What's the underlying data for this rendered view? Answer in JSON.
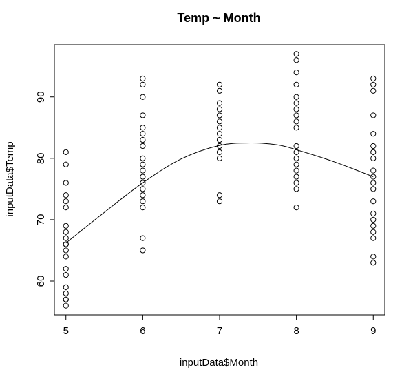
{
  "chart_data": {
    "type": "scatter",
    "title": "Temp ~ Month",
    "xlabel": "inputData$Month",
    "ylabel": "inputData$Temp",
    "xlim": [
      4.85,
      9.15
    ],
    "ylim": [
      54.5,
      98.5
    ],
    "x_ticks": [
      5,
      6,
      7,
      8,
      9
    ],
    "y_ticks": [
      60,
      70,
      80,
      90
    ],
    "grid": false,
    "legend": "none",
    "marker_color": "#000000",
    "line_color": "#000000",
    "series": [
      {
        "marker": "open-circle",
        "points": [
          [
            5,
            81
          ],
          [
            5,
            79
          ],
          [
            5,
            76
          ],
          [
            5,
            74
          ],
          [
            5,
            73
          ],
          [
            5,
            72
          ],
          [
            5,
            69
          ],
          [
            5,
            68
          ],
          [
            5,
            67
          ],
          [
            5,
            66
          ],
          [
            5,
            66
          ],
          [
            5,
            65
          ],
          [
            5,
            64
          ],
          [
            5,
            62
          ],
          [
            5,
            61
          ],
          [
            5,
            59
          ],
          [
            5,
            58
          ],
          [
            5,
            57
          ],
          [
            5,
            57
          ],
          [
            5,
            56
          ],
          [
            6,
            93
          ],
          [
            6,
            92
          ],
          [
            6,
            90
          ],
          [
            6,
            87
          ],
          [
            6,
            85
          ],
          [
            6,
            84
          ],
          [
            6,
            83
          ],
          [
            6,
            82
          ],
          [
            6,
            80
          ],
          [
            6,
            79
          ],
          [
            6,
            78
          ],
          [
            6,
            77
          ],
          [
            6,
            76
          ],
          [
            6,
            75
          ],
          [
            6,
            74
          ],
          [
            6,
            73
          ],
          [
            6,
            72
          ],
          [
            6,
            67
          ],
          [
            6,
            65
          ],
          [
            7,
            92
          ],
          [
            7,
            91
          ],
          [
            7,
            89
          ],
          [
            7,
            88
          ],
          [
            7,
            87
          ],
          [
            7,
            86
          ],
          [
            7,
            85
          ],
          [
            7,
            84
          ],
          [
            7,
            83
          ],
          [
            7,
            82
          ],
          [
            7,
            81
          ],
          [
            7,
            80
          ],
          [
            7,
            74
          ],
          [
            7,
            73
          ],
          [
            8,
            97
          ],
          [
            8,
            96
          ],
          [
            8,
            94
          ],
          [
            8,
            92
          ],
          [
            8,
            90
          ],
          [
            8,
            89
          ],
          [
            8,
            88
          ],
          [
            8,
            87
          ],
          [
            8,
            86
          ],
          [
            8,
            85
          ],
          [
            8,
            82
          ],
          [
            8,
            81
          ],
          [
            8,
            80
          ],
          [
            8,
            79
          ],
          [
            8,
            78
          ],
          [
            8,
            77
          ],
          [
            8,
            76
          ],
          [
            8,
            75
          ],
          [
            8,
            72
          ],
          [
            9,
            93
          ],
          [
            9,
            92
          ],
          [
            9,
            91
          ],
          [
            9,
            87
          ],
          [
            9,
            84
          ],
          [
            9,
            82
          ],
          [
            9,
            81
          ],
          [
            9,
            80
          ],
          [
            9,
            78
          ],
          [
            9,
            77
          ],
          [
            9,
            76
          ],
          [
            9,
            75
          ],
          [
            9,
            73
          ],
          [
            9,
            71
          ],
          [
            9,
            70
          ],
          [
            9,
            69
          ],
          [
            9,
            68
          ],
          [
            9,
            67
          ],
          [
            9,
            64
          ],
          [
            9,
            63
          ]
        ]
      },
      {
        "marker": "none",
        "line_type": "smooth-fit",
        "x": [
          5,
          5.5,
          6,
          6.5,
          7,
          7.4,
          7.75,
          8,
          8.5,
          9
        ],
        "y": [
          66.2,
          71.2,
          76,
          79.9,
          82.1,
          82.5,
          82.2,
          81.4,
          79.4,
          77
        ]
      }
    ]
  }
}
